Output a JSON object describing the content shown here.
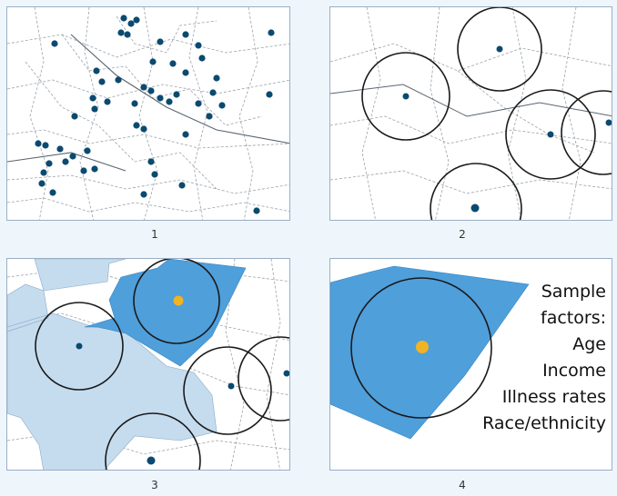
{
  "colors": {
    "dot": "#0b4a70",
    "sample_dot": "#f0b323",
    "selected_tract": "#4f9fdb",
    "neighbor_tract": "#c5dcef",
    "circle": "#1a1a1a",
    "road": "#9aa3ab",
    "background": "#eef6fc"
  },
  "panels": [
    {
      "caption": "1"
    },
    {
      "caption": "2"
    },
    {
      "caption": "3"
    },
    {
      "caption": "4"
    }
  ],
  "sample_factors": {
    "heading_line1": "Sample",
    "heading_line2": "factors:",
    "items": [
      "Age",
      "Income",
      "Illness rates",
      "Race/ethnicity"
    ]
  }
}
